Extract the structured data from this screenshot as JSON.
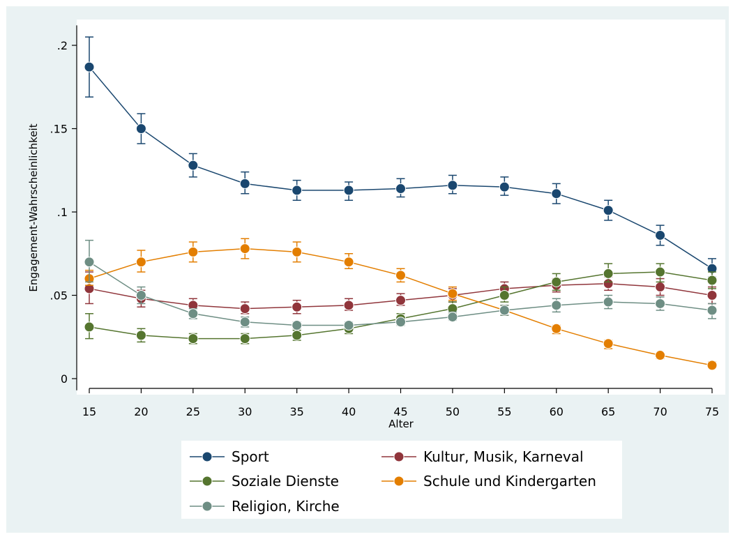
{
  "chart_data": {
    "type": "line",
    "xlabel": "Alter",
    "ylabel": "Engagement-Wahrscheinlichkeit",
    "x": [
      15,
      20,
      25,
      30,
      35,
      40,
      45,
      50,
      55,
      60,
      65,
      70,
      75
    ],
    "x_ticks": [
      "15",
      "20",
      "25",
      "30",
      "35",
      "40",
      "45",
      "50",
      "55",
      "60",
      "65",
      "70",
      "75"
    ],
    "y_ticks": [
      {
        "value": 0,
        "label": "0"
      },
      {
        "value": 0.05,
        "label": ".05"
      },
      {
        "value": 0.1,
        "label": ".1"
      },
      {
        "value": 0.15,
        "label": ".15"
      },
      {
        "value": 0.2,
        "label": ".2"
      }
    ],
    "xlim": [
      15,
      75
    ],
    "ylim": [
      -0.007,
      0.212
    ],
    "grid": false,
    "legend_position": "bottom",
    "error_bars": true,
    "series": [
      {
        "name": "Sport",
        "color": "#1a476f",
        "values": [
          0.187,
          0.15,
          0.128,
          0.117,
          0.113,
          0.113,
          0.114,
          0.116,
          0.115,
          0.111,
          0.101,
          0.086,
          0.066
        ],
        "lower": [
          0.169,
          0.141,
          0.121,
          0.111,
          0.107,
          0.107,
          0.109,
          0.111,
          0.11,
          0.105,
          0.095,
          0.08,
          0.061
        ],
        "upper": [
          0.205,
          0.159,
          0.135,
          0.124,
          0.119,
          0.118,
          0.12,
          0.122,
          0.121,
          0.117,
          0.107,
          0.092,
          0.072
        ]
      },
      {
        "name": "Kultur, Musik, Karneval",
        "color": "#90353b",
        "values": [
          0.054,
          0.048,
          0.044,
          0.042,
          0.043,
          0.044,
          0.047,
          0.05,
          0.054,
          0.056,
          0.057,
          0.055,
          0.05
        ],
        "lower": [
          0.045,
          0.043,
          0.04,
          0.039,
          0.039,
          0.041,
          0.044,
          0.046,
          0.05,
          0.052,
          0.053,
          0.05,
          0.045
        ],
        "upper": [
          0.064,
          0.053,
          0.048,
          0.046,
          0.047,
          0.048,
          0.051,
          0.054,
          0.058,
          0.06,
          0.061,
          0.06,
          0.055
        ]
      },
      {
        "name": "Soziale Dienste",
        "color": "#55752f",
        "values": [
          0.031,
          0.026,
          0.024,
          0.024,
          0.026,
          0.03,
          0.036,
          0.042,
          0.05,
          0.058,
          0.063,
          0.064,
          0.059
        ],
        "lower": [
          0.024,
          0.022,
          0.021,
          0.021,
          0.023,
          0.027,
          0.032,
          0.039,
          0.046,
          0.053,
          0.058,
          0.058,
          0.054
        ],
        "upper": [
          0.039,
          0.03,
          0.027,
          0.027,
          0.029,
          0.033,
          0.039,
          0.046,
          0.055,
          0.063,
          0.069,
          0.069,
          0.064
        ]
      },
      {
        "name": "Schule und Kindergarten",
        "color": "#e37e00",
        "values": [
          0.06,
          0.07,
          0.076,
          0.078,
          0.076,
          0.07,
          0.062,
          0.051,
          0.041,
          0.03,
          0.021,
          0.014,
          0.008
        ],
        "lower": [
          0.056,
          0.064,
          0.07,
          0.072,
          0.07,
          0.066,
          0.058,
          0.047,
          0.038,
          0.027,
          0.018,
          0.012,
          0.007
        ],
        "upper": [
          0.065,
          0.077,
          0.082,
          0.084,
          0.082,
          0.075,
          0.066,
          0.055,
          0.044,
          0.032,
          0.023,
          0.015,
          0.01
        ]
      },
      {
        "name": "Religion, Kirche",
        "color": "#6e8e84",
        "values": [
          0.07,
          0.05,
          0.039,
          0.034,
          0.032,
          0.032,
          0.034,
          0.037,
          0.041,
          0.044,
          0.046,
          0.045,
          0.041
        ],
        "lower": [
          0.058,
          0.045,
          0.036,
          0.031,
          0.03,
          0.03,
          0.032,
          0.035,
          0.038,
          0.04,
          0.042,
          0.041,
          0.036
        ],
        "upper": [
          0.083,
          0.055,
          0.042,
          0.037,
          0.034,
          0.034,
          0.036,
          0.04,
          0.044,
          0.048,
          0.05,
          0.049,
          0.045
        ]
      }
    ],
    "legend": [
      {
        "name": "Sport",
        "color": "#1a476f"
      },
      {
        "name": "Kultur, Musik, Karneval",
        "color": "#90353b"
      },
      {
        "name": "Soziale Dienste",
        "color": "#55752f"
      },
      {
        "name": "Schule und Kindergarten",
        "color": "#e37e00"
      },
      {
        "name": "Religion, Kirche",
        "color": "#6e8e84"
      }
    ],
    "colors": {
      "outer_background": "#eaf2f3",
      "plot_background": "#ffffff",
      "marker_outline": "#ffffff"
    }
  }
}
